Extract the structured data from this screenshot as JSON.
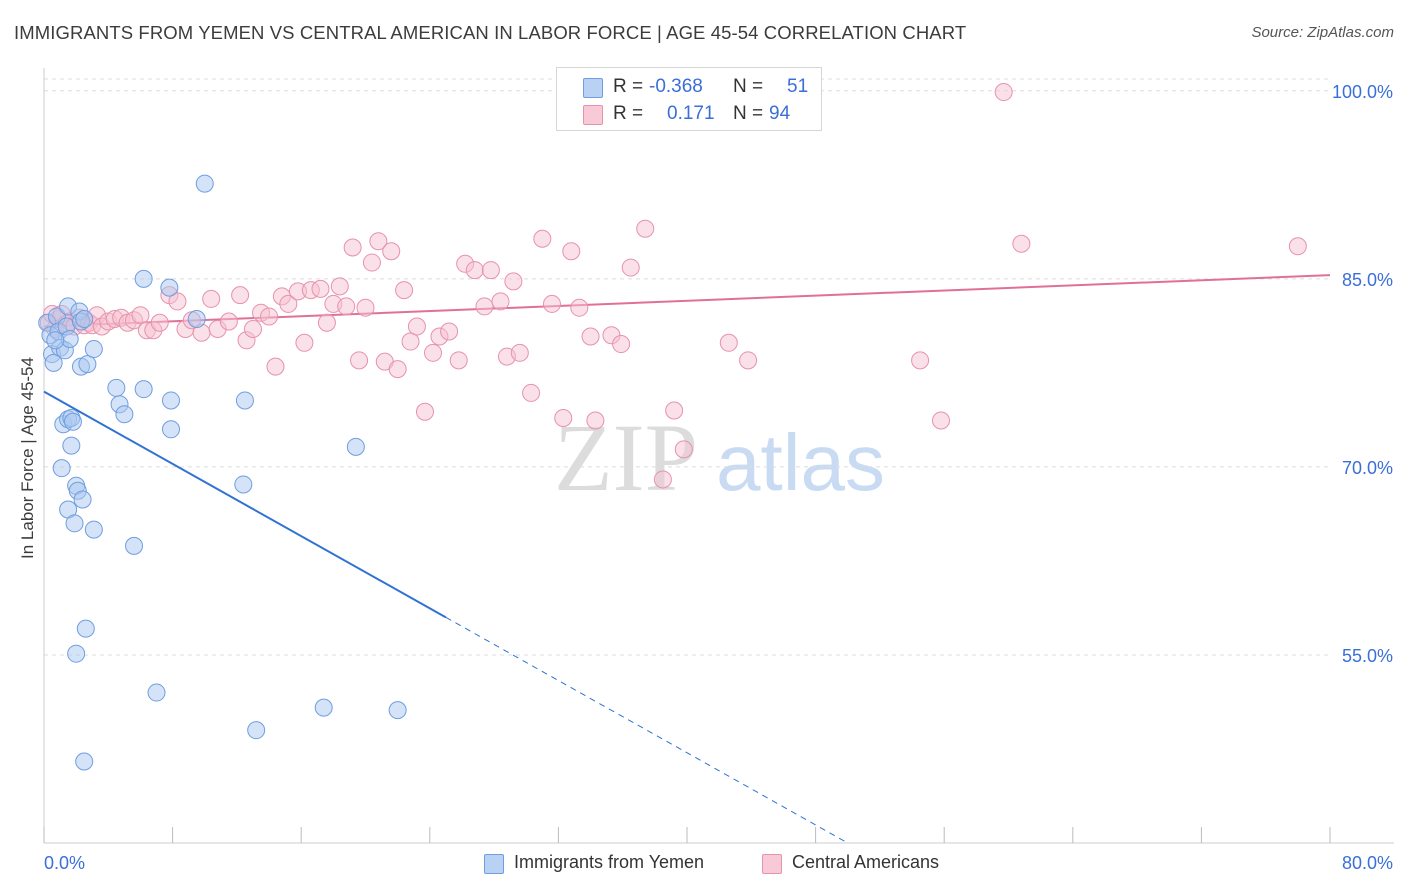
{
  "title": "IMMIGRANTS FROM YEMEN VS CENTRAL AMERICAN IN LABOR FORCE | AGE 45-54 CORRELATION CHART",
  "source": "Source: ZipAtlas.com",
  "watermark": {
    "zip": "ZIP",
    "atlas": "atlas"
  },
  "legend": {
    "rows": [
      {
        "r_label": "R =",
        "r_value": "-0.368",
        "n_label": "N =",
        "n_value": "51"
      },
      {
        "r_label": "R =",
        "r_value": "0.171",
        "n_label": "N =",
        "n_value": "94"
      }
    ]
  },
  "bottom_legend": [
    "Immigrants from Yemen",
    "Central Americans"
  ],
  "colors": {
    "blue_fill": "#aac8f0",
    "blue_stroke": "#6f9ee0",
    "blue_line": "#2f72d2",
    "pink_fill": "#f6c1d1",
    "pink_stroke": "#e792ac",
    "pink_line": "#e0709a",
    "tick_text": "#3a6fd8",
    "grid": "#dcdcdc"
  },
  "chart_data": {
    "type": "scatter",
    "title": "IMMIGRANTS FROM YEMEN VS CENTRAL AMERICAN IN LABOR FORCE | AGE 45-54 CORRELATION CHART",
    "xlabel": "",
    "ylabel": "In Labor Force | Age 45-54",
    "xlim": [
      0,
      80
    ],
    "ylim": [
      40,
      101.5
    ],
    "x_tick_labels": [
      "0.0%",
      "80.0%"
    ],
    "y_ticks": [
      55,
      70,
      85,
      100
    ],
    "y_tick_labels": [
      "55.0%",
      "70.0%",
      "85.0%",
      "100.0%"
    ],
    "grid": true,
    "legend_position": "top-center",
    "series": [
      {
        "name": "Immigrants from Yemen",
        "r": -0.368,
        "n": 51,
        "trendline": {
          "x0": 0,
          "y0": 76.0,
          "x1": 50,
          "y1": 40.0,
          "solid_until_x": 25
        },
        "points": [
          [
            0.2,
            81.5
          ],
          [
            0.4,
            80.5
          ],
          [
            0.5,
            79.0
          ],
          [
            0.6,
            78.3
          ],
          [
            0.8,
            82.0
          ],
          [
            0.9,
            80.8
          ],
          [
            1.0,
            79.5
          ],
          [
            1.1,
            69.9
          ],
          [
            1.2,
            73.4
          ],
          [
            1.3,
            79.3
          ],
          [
            1.4,
            81.2
          ],
          [
            1.5,
            66.6
          ],
          [
            1.5,
            73.8
          ],
          [
            1.5,
            82.8
          ],
          [
            1.6,
            80.2
          ],
          [
            1.7,
            73.9
          ],
          [
            1.7,
            71.7
          ],
          [
            1.8,
            73.6
          ],
          [
            1.9,
            65.5
          ],
          [
            2.0,
            68.5
          ],
          [
            2.0,
            55.1
          ],
          [
            2.1,
            68.1
          ],
          [
            2.2,
            82.4
          ],
          [
            2.3,
            78.0
          ],
          [
            2.3,
            81.6
          ],
          [
            2.4,
            67.4
          ],
          [
            2.5,
            81.8
          ],
          [
            2.5,
            46.5
          ],
          [
            2.6,
            57.1
          ],
          [
            2.7,
            78.2
          ],
          [
            3.1,
            65.0
          ],
          [
            3.1,
            79.4
          ],
          [
            4.5,
            76.3
          ],
          [
            4.7,
            75.0
          ],
          [
            5.0,
            74.2
          ],
          [
            5.6,
            63.7
          ],
          [
            6.2,
            76.2
          ],
          [
            6.2,
            85.0
          ],
          [
            7.0,
            52.0
          ],
          [
            7.8,
            84.3
          ],
          [
            7.9,
            73.0
          ],
          [
            7.9,
            75.3
          ],
          [
            9.5,
            81.8
          ],
          [
            10.0,
            92.6
          ],
          [
            12.4,
            68.6
          ],
          [
            12.5,
            75.3
          ],
          [
            13.2,
            49.0
          ],
          [
            17.4,
            50.8
          ],
          [
            19.4,
            71.6
          ],
          [
            22.0,
            50.6
          ],
          [
            0.7,
            80.1
          ]
        ]
      },
      {
        "name": "Central Americans",
        "r": 0.171,
        "n": 94,
        "trendline": {
          "x0": 0,
          "y0": 81.2,
          "x1": 80,
          "y1": 85.3
        },
        "points": [
          [
            0.3,
            81.5
          ],
          [
            0.5,
            82.2
          ],
          [
            0.7,
            81.0
          ],
          [
            0.9,
            81.8
          ],
          [
            1.1,
            82.2
          ],
          [
            1.4,
            81.4
          ],
          [
            1.6,
            81.6
          ],
          [
            1.9,
            81.2
          ],
          [
            2.2,
            81.9
          ],
          [
            2.5,
            81.3
          ],
          [
            2.8,
            81.5
          ],
          [
            3.0,
            81.3
          ],
          [
            3.3,
            82.1
          ],
          [
            3.6,
            81.2
          ],
          [
            4.0,
            81.6
          ],
          [
            4.4,
            81.8
          ],
          [
            4.8,
            81.9
          ],
          [
            5.2,
            81.5
          ],
          [
            5.6,
            81.7
          ],
          [
            6.0,
            82.1
          ],
          [
            6.4,
            80.9
          ],
          [
            6.8,
            80.9
          ],
          [
            7.2,
            81.5
          ],
          [
            7.8,
            83.7
          ],
          [
            8.3,
            83.2
          ],
          [
            8.8,
            81.0
          ],
          [
            9.2,
            81.7
          ],
          [
            9.8,
            80.7
          ],
          [
            10.4,
            83.4
          ],
          [
            10.8,
            81.0
          ],
          [
            11.5,
            81.6
          ],
          [
            12.2,
            83.7
          ],
          [
            12.6,
            80.1
          ],
          [
            13.0,
            81.0
          ],
          [
            13.5,
            82.3
          ],
          [
            14.0,
            82.0
          ],
          [
            14.4,
            78.0
          ],
          [
            14.8,
            83.6
          ],
          [
            15.2,
            83.0
          ],
          [
            15.8,
            84.0
          ],
          [
            16.2,
            79.9
          ],
          [
            16.6,
            84.1
          ],
          [
            17.2,
            84.2
          ],
          [
            17.6,
            81.5
          ],
          [
            18.0,
            83.0
          ],
          [
            18.4,
            84.4
          ],
          [
            18.8,
            82.8
          ],
          [
            19.2,
            87.5
          ],
          [
            19.6,
            78.5
          ],
          [
            20.0,
            82.7
          ],
          [
            20.4,
            86.3
          ],
          [
            20.8,
            88.0
          ],
          [
            21.2,
            78.4
          ],
          [
            21.6,
            87.2
          ],
          [
            22.0,
            77.8
          ],
          [
            22.4,
            84.1
          ],
          [
            22.8,
            80.0
          ],
          [
            23.2,
            81.2
          ],
          [
            23.7,
            74.4
          ],
          [
            24.2,
            79.1
          ],
          [
            24.6,
            80.4
          ],
          [
            25.2,
            80.8
          ],
          [
            25.8,
            78.5
          ],
          [
            26.2,
            86.2
          ],
          [
            26.8,
            85.7
          ],
          [
            27.4,
            82.8
          ],
          [
            27.8,
            85.7
          ],
          [
            28.4,
            83.2
          ],
          [
            28.8,
            78.8
          ],
          [
            29.2,
            84.8
          ],
          [
            29.6,
            79.1
          ],
          [
            30.3,
            75.9
          ],
          [
            31.0,
            88.2
          ],
          [
            31.6,
            83.0
          ],
          [
            32.3,
            73.9
          ],
          [
            32.8,
            87.2
          ],
          [
            33.3,
            82.7
          ],
          [
            34.0,
            80.4
          ],
          [
            34.3,
            73.7
          ],
          [
            35.3,
            80.5
          ],
          [
            35.9,
            79.8
          ],
          [
            36.5,
            85.9
          ],
          [
            37.4,
            89.0
          ],
          [
            38.5,
            69.0
          ],
          [
            39.2,
            74.5
          ],
          [
            39.8,
            71.4
          ],
          [
            42.6,
            79.9
          ],
          [
            43.8,
            78.5
          ],
          [
            47.8,
            99.9
          ],
          [
            54.5,
            78.5
          ],
          [
            55.8,
            73.7
          ],
          [
            59.7,
            99.9
          ],
          [
            60.8,
            87.8
          ],
          [
            78.0,
            87.6
          ]
        ]
      }
    ]
  }
}
